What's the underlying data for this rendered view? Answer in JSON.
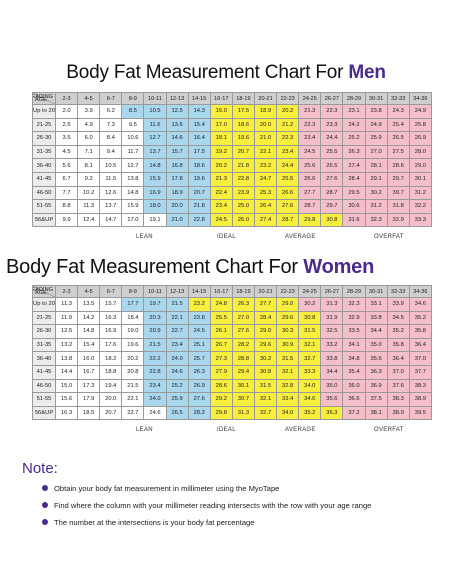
{
  "colors": {
    "lean": "#ffffff",
    "ideal": "#a9d7ee",
    "average": "#f7ef3b",
    "overfat": "#f4bfc9",
    "accent": "#4b2a8e"
  },
  "corner": {
    "reading": "READING",
    "age": "AGE"
  },
  "columns": [
    "2-3",
    "4-5",
    "6-7",
    "8-9",
    "10-11",
    "12-13",
    "14-15",
    "16-17",
    "18-19",
    "20-21",
    "22-23",
    "24-25",
    "26-27",
    "28-29",
    "30-31",
    "32-33",
    "34-36"
  ],
  "zones": {
    "lean": "LEAN",
    "ideal": "IDEAL",
    "average": "AVERAGE",
    "overfat": "OVERFAT"
  },
  "men": {
    "title_prefix": "Body Fat Measurement Chart For ",
    "title_accent": "Men",
    "rows": [
      {
        "age": "Up to 20",
        "values": [
          "2.0",
          "3.9",
          "6.2",
          "8.5",
          "10.5",
          "12.5",
          "14.3",
          "16.0",
          "17.5",
          "18.9",
          "20.2",
          "21.3",
          "22.3",
          "23.1",
          "23.8",
          "24.3",
          "24.9"
        ],
        "zones": [
          0,
          0,
          0,
          1,
          1,
          1,
          1,
          2,
          2,
          2,
          2,
          3,
          3,
          3,
          3,
          3,
          3
        ]
      },
      {
        "age": "21-25",
        "values": [
          "2.5",
          "4.9",
          "7.3",
          "9.5",
          "11.6",
          "13.6",
          "15.4",
          "17.0",
          "18.6",
          "20.0",
          "21.2",
          "22.3",
          "23.3",
          "24.2",
          "24.9",
          "25.4",
          "25.8"
        ],
        "zones": [
          0,
          0,
          0,
          0,
          1,
          1,
          1,
          2,
          2,
          2,
          2,
          3,
          3,
          3,
          3,
          3,
          3
        ]
      },
      {
        "age": "26-30",
        "values": [
          "3.5",
          "6.0",
          "8.4",
          "10.6",
          "12.7",
          "14.6",
          "16.4",
          "18.1",
          "19.6",
          "21.0",
          "22.3",
          "23.4",
          "24.4",
          "25.2",
          "25.9",
          "26.5",
          "26.9"
        ],
        "zones": [
          0,
          0,
          0,
          0,
          1,
          1,
          1,
          2,
          2,
          2,
          2,
          3,
          3,
          3,
          3,
          3,
          3
        ]
      },
      {
        "age": "31-35",
        "values": [
          "4.5",
          "7.1",
          "9.4",
          "11.7",
          "13.7",
          "15.7",
          "17.5",
          "19.2",
          "20.7",
          "22.1",
          "23.4",
          "24.5",
          "25.5",
          "26.3",
          "27.0",
          "27.5",
          "28.0"
        ],
        "zones": [
          0,
          0,
          0,
          0,
          1,
          1,
          1,
          2,
          2,
          2,
          2,
          3,
          3,
          3,
          3,
          3,
          3
        ]
      },
      {
        "age": "36-40",
        "values": [
          "5.6",
          "8.1",
          "10.5",
          "12.7",
          "14.8",
          "16.8",
          "18.6",
          "20.2",
          "21.8",
          "23.2",
          "24.4",
          "25.6",
          "26.5",
          "27.4",
          "28.1",
          "28.6",
          "29.0"
        ],
        "zones": [
          0,
          0,
          0,
          0,
          1,
          1,
          1,
          2,
          2,
          2,
          2,
          3,
          3,
          3,
          3,
          3,
          3
        ]
      },
      {
        "age": "41-45",
        "values": [
          "6.7",
          "9.2",
          "11.5",
          "13.8",
          "15.9",
          "17.8",
          "19.6",
          "21.3",
          "22.8",
          "24.7",
          "25.5",
          "26.6",
          "27.6",
          "28.4",
          "29.1",
          "29.7",
          "30.1"
        ],
        "zones": [
          0,
          0,
          0,
          0,
          1,
          1,
          1,
          2,
          2,
          2,
          2,
          3,
          3,
          3,
          3,
          3,
          3
        ]
      },
      {
        "age": "46-50",
        "values": [
          "7.7",
          "10.2",
          "12.6",
          "14.8",
          "16.9",
          "18.9",
          "20.7",
          "22.4",
          "23.9",
          "25.3",
          "26.6",
          "27.7",
          "28.7",
          "29.5",
          "30.2",
          "30.7",
          "31.2"
        ],
        "zones": [
          0,
          0,
          0,
          0,
          1,
          1,
          1,
          2,
          2,
          2,
          2,
          3,
          3,
          3,
          3,
          3,
          3
        ]
      },
      {
        "age": "51-55",
        "values": [
          "8.8",
          "11.3",
          "13.7",
          "15.9",
          "18.0",
          "20.0",
          "21.8",
          "23.4",
          "25.0",
          "26.4",
          "27.6",
          "28.7",
          "29.7",
          "30.6",
          "31.2",
          "31.8",
          "32.2"
        ],
        "zones": [
          0,
          0,
          0,
          0,
          1,
          1,
          1,
          2,
          2,
          2,
          2,
          3,
          3,
          3,
          3,
          3,
          3
        ]
      },
      {
        "age": "56&UP",
        "values": [
          "9.9",
          "12.4",
          "14.7",
          "17.0",
          "19.1",
          "21.0",
          "22.8",
          "24.5",
          "26.0",
          "27.4",
          "28.7",
          "29.8",
          "30.8",
          "31.6",
          "32.3",
          "32.9",
          "33.3"
        ],
        "zones": [
          0,
          0,
          0,
          0,
          0,
          1,
          1,
          2,
          2,
          2,
          2,
          2,
          2,
          3,
          3,
          3,
          3
        ]
      }
    ]
  },
  "women": {
    "title_prefix": "Body Fat Measurement Chart For ",
    "title_accent": "Women",
    "rows": [
      {
        "age": "Up to 20",
        "values": [
          "11.3",
          "13.5",
          "15.7",
          "17.7",
          "19.7",
          "21.5",
          "23.2",
          "24.8",
          "26.3",
          "27.7",
          "29.0",
          "30.2",
          "31.3",
          "32.3",
          "33.1",
          "33.9",
          "34.6"
        ],
        "zones": [
          0,
          0,
          0,
          1,
          1,
          1,
          2,
          2,
          2,
          2,
          2,
          3,
          3,
          3,
          3,
          3,
          3
        ]
      },
      {
        "age": "21-25",
        "values": [
          "11.9",
          "14.2",
          "16.3",
          "18.4",
          "20.3",
          "22.1",
          "23.8",
          "25.5",
          "27.0",
          "28.4",
          "29.6",
          "30.8",
          "31.9",
          "32.9",
          "33.8",
          "34.5",
          "35.2"
        ],
        "zones": [
          0,
          0,
          0,
          0,
          1,
          1,
          1,
          2,
          2,
          2,
          2,
          2,
          3,
          3,
          3,
          3,
          3
        ]
      },
      {
        "age": "26-30",
        "values": [
          "12.5",
          "14.8",
          "16.9",
          "19.0",
          "20.9",
          "22.7",
          "24.5",
          "26.1",
          "27.6",
          "29.0",
          "30.3",
          "31.5",
          "32.5",
          "33.5",
          "34.4",
          "35.2",
          "35.8"
        ],
        "zones": [
          0,
          0,
          0,
          0,
          1,
          1,
          1,
          2,
          2,
          2,
          2,
          2,
          3,
          3,
          3,
          3,
          3
        ]
      },
      {
        "age": "31-35",
        "values": [
          "13.2",
          "15.4",
          "17.6",
          "19.6",
          "21.5",
          "23.4",
          "25.1",
          "26.7",
          "28.2",
          "29.6",
          "30.9",
          "32.1",
          "33.2",
          "34.1",
          "35.0",
          "35.8",
          "36.4"
        ],
        "zones": [
          0,
          0,
          0,
          0,
          1,
          1,
          1,
          2,
          2,
          2,
          2,
          2,
          3,
          3,
          3,
          3,
          3
        ]
      },
      {
        "age": "36-40",
        "values": [
          "13.8",
          "16.0",
          "18.2",
          "20.2",
          "22.2",
          "24.0",
          "25.7",
          "27.3",
          "28.8",
          "30.2",
          "31.5",
          "32.7",
          "33.8",
          "34.8",
          "35.6",
          "36.4",
          "37.0"
        ],
        "zones": [
          0,
          0,
          0,
          0,
          1,
          1,
          1,
          2,
          2,
          2,
          2,
          2,
          3,
          3,
          3,
          3,
          3
        ]
      },
      {
        "age": "41-45",
        "values": [
          "14.4",
          "16.7",
          "18.8",
          "20.8",
          "22.8",
          "24.6",
          "26.3",
          "27.9",
          "29.4",
          "30.8",
          "32.1",
          "33.3",
          "34.4",
          "35.4",
          "36.3",
          "37.0",
          "37.7"
        ],
        "zones": [
          0,
          0,
          0,
          0,
          1,
          1,
          1,
          2,
          2,
          2,
          2,
          2,
          3,
          3,
          3,
          3,
          3
        ]
      },
      {
        "age": "46-50",
        "values": [
          "15.0",
          "17.3",
          "19.4",
          "21.5",
          "23.4",
          "25.2",
          "26.9",
          "28.6",
          "30.1",
          "31.5",
          "32.8",
          "34.0",
          "35.0",
          "36.0",
          "36.9",
          "37.6",
          "38.3"
        ],
        "zones": [
          0,
          0,
          0,
          0,
          1,
          1,
          1,
          2,
          2,
          2,
          2,
          2,
          3,
          3,
          3,
          3,
          3
        ]
      },
      {
        "age": "51-55",
        "values": [
          "15.6",
          "17.9",
          "20.0",
          "22.1",
          "24.0",
          "25.9",
          "27.6",
          "29.2",
          "30.7",
          "32.1",
          "33.4",
          "34.6",
          "35.6",
          "36.6",
          "37.5",
          "38.3",
          "38.9"
        ],
        "zones": [
          0,
          0,
          0,
          0,
          1,
          1,
          1,
          2,
          2,
          2,
          2,
          2,
          3,
          3,
          3,
          3,
          3
        ]
      },
      {
        "age": "56&UP",
        "values": [
          "16.3",
          "18.5",
          "20.7",
          "22.7",
          "24.6",
          "26.5",
          "28.2",
          "29.8",
          "31.3",
          "32.7",
          "34.0",
          "35.2",
          "36.3",
          "37.2",
          "38.1",
          "38.9",
          "39.5"
        ],
        "zones": [
          0,
          0,
          0,
          0,
          0,
          1,
          1,
          2,
          2,
          2,
          2,
          2,
          2,
          3,
          3,
          3,
          3
        ]
      }
    ]
  },
  "note": {
    "title": "Note:",
    "items": [
      "Obtain your body fat measurement in millimeter using the MyoTape",
      "Find where the column with your millimeter reading intersects with the row with your age range",
      "The number at the intersections is your body fat percentage"
    ]
  }
}
